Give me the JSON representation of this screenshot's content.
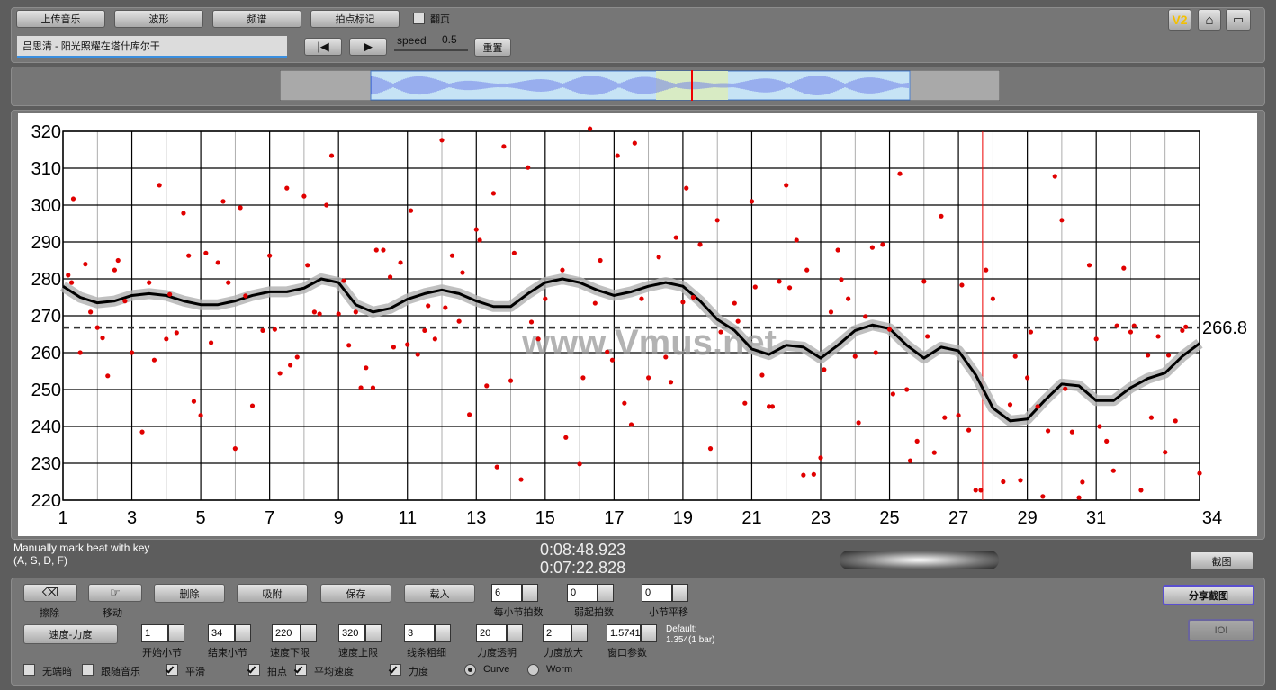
{
  "toolbar": {
    "buttons": [
      "上传音乐",
      "波形",
      "频谱",
      "拍点标记"
    ],
    "page_flip": {
      "label": "翻页",
      "checked": false
    },
    "song": "吕思清 - 阳光照耀在塔什库尔干",
    "speed_label": "speed",
    "speed_value": 0.5,
    "reset": "重置",
    "version": "V2"
  },
  "chart_data": {
    "type": "line",
    "ylim": [
      220,
      320
    ],
    "yticks": [
      220,
      230,
      240,
      250,
      260,
      270,
      280,
      290,
      300,
      310,
      320
    ],
    "xlim": [
      1,
      34
    ],
    "xticks": [
      1,
      3,
      5,
      7,
      9,
      11,
      13,
      15,
      17,
      19,
      21,
      23,
      25,
      27,
      29,
      31,
      34
    ],
    "grid": true,
    "average": 266.8,
    "marker_x": 27.7,
    "watermark": "www.Vmus.net",
    "series": [
      {
        "type": "line",
        "color": "#000000",
        "x": [
          1,
          1.5,
          2,
          2.5,
          3,
          3.5,
          4,
          4.5,
          5,
          5.5,
          6,
          6.5,
          7,
          7.5,
          8,
          8.5,
          9,
          9.5,
          10,
          10.5,
          11,
          11.5,
          12,
          12.5,
          13,
          13.5,
          14,
          14.5,
          15,
          15.5,
          16,
          16.5,
          17,
          17.5,
          18,
          18.5,
          19,
          19.5,
          20,
          20.5,
          21,
          21.5,
          22,
          22.5,
          23,
          23.5,
          24,
          24.5,
          25,
          25.5,
          26,
          26.5,
          27,
          27.5,
          28,
          28.5,
          29,
          29.5,
          30,
          30.5,
          31,
          31.5,
          32,
          32.5,
          33,
          33.5,
          34
        ],
        "values": [
          278,
          275,
          273.5,
          274,
          275.5,
          276,
          275.5,
          274,
          273,
          273,
          274,
          275.5,
          276.5,
          276.5,
          277.5,
          280,
          279,
          273,
          271,
          272,
          274.5,
          276,
          277,
          276,
          274,
          272.5,
          272.5,
          276,
          279,
          280,
          279,
          277,
          275.5,
          276.5,
          278,
          279,
          278,
          274,
          269,
          266,
          261,
          259.5,
          262,
          261.5,
          258.5,
          262,
          266,
          267.5,
          266.5,
          262,
          258.5,
          261.5,
          260.5,
          254,
          245,
          241.5,
          242,
          247,
          251.5,
          251,
          247,
          247,
          250.5,
          253,
          254.5,
          259,
          262.5
        ]
      },
      {
        "type": "scatter",
        "color": "#e00000",
        "x": [
          1.25,
          1.15,
          1.3,
          1.5,
          1.65,
          1.8,
          2.0,
          2.15,
          2.3,
          2.5,
          2.6,
          2.8,
          3.0,
          3.3,
          3.5,
          3.65,
          3.8,
          4.0,
          4.1,
          4.3,
          4.5,
          4.65,
          4.8,
          5.0,
          5.15,
          5.3,
          5.5,
          5.65,
          5.8,
          6.0,
          6.15,
          6.3,
          6.5,
          6.8,
          7.0,
          7.15,
          7.3,
          7.5,
          7.6,
          7.8,
          8.0,
          8.1,
          8.3,
          8.45,
          8.65,
          8.8,
          9.0,
          9.15,
          9.3,
          9.5,
          9.65,
          9.8,
          10.0,
          10.1,
          10.3,
          10.5,
          10.6,
          10.8,
          11.0,
          11.1,
          11.3,
          11.5,
          11.6,
          11.8,
          12.0,
          12.1,
          12.3,
          12.5,
          12.6,
          12.8,
          13.0,
          13.1,
          13.3,
          13.5,
          13.6,
          13.8,
          14.0,
          14.1,
          14.3,
          14.5,
          14.6,
          14.8,
          15.0,
          15.5,
          15.6,
          16.0,
          16.1,
          16.3,
          16.45,
          16.6,
          16.8,
          16.95,
          17.1,
          17.3,
          17.5,
          17.6,
          17.8,
          18.0,
          18.3,
          18.5,
          18.65,
          18.8,
          19.0,
          19.1,
          19.3,
          19.5,
          19.8,
          20.0,
          20.1,
          20.5,
          20.6,
          20.8,
          21.0,
          21.1,
          21.3,
          21.5,
          21.6,
          21.8,
          22.0,
          22.1,
          22.3,
          22.5,
          22.6,
          22.8,
          23.0,
          23.1,
          23.3,
          23.5,
          23.6,
          23.8,
          24.0,
          24.1,
          24.3,
          24.5,
          24.6,
          24.8,
          25.0,
          25.1,
          25.3,
          25.5,
          25.6,
          25.8,
          26.0,
          26.1,
          26.3,
          26.5,
          26.6,
          27.0,
          27.1,
          27.3,
          27.5,
          27.65,
          27.8,
          28.0,
          28.3,
          28.5,
          28.65,
          28.8,
          29.0,
          29.1,
          29.3,
          29.45,
          29.6,
          29.8,
          30.0,
          30.1,
          30.3,
          30.5,
          30.6,
          30.8,
          31.0,
          31.1,
          31.3,
          31.5,
          31.6,
          31.8,
          32.0,
          32.1,
          32.3,
          32.5,
          32.6,
          32.8,
          33.0,
          33.1,
          33.3,
          33.5,
          33.6,
          34.0
        ],
        "values": [
          279,
          281,
          301.7,
          260,
          284,
          271,
          266.8,
          264,
          253.7,
          282.4,
          285,
          274,
          260,
          238.5,
          279,
          258,
          305.4,
          263.7,
          275.8,
          265.4,
          297.8,
          286.3,
          246.8,
          243,
          287,
          262.7,
          284.4,
          301,
          279,
          234,
          299.3,
          275.4,
          245.6,
          266,
          286.3,
          266.3,
          254.4,
          304.6,
          256.6,
          258.8,
          302.4,
          283.7,
          271,
          270.5,
          300,
          313.4,
          270.5,
          279.5,
          262,
          271,
          250.5,
          255.9,
          250.5,
          287.8,
          287.8,
          280.5,
          261.5,
          284.4,
          262.2,
          298.5,
          259.5,
          266,
          272.7,
          263.7,
          317.6,
          272.2,
          286.3,
          268.5,
          281.7,
          243.2,
          293.4,
          290.5,
          251,
          303.2,
          229,
          315.9,
          252.4,
          287,
          225.6,
          310.2,
          268.3,
          263.7,
          274.6,
          282.4,
          237,
          229.8,
          253.2,
          320.7,
          273.4,
          285,
          260.2,
          258,
          313.4,
          246.3,
          240.5,
          316.8,
          274.6,
          253.2,
          285.9,
          258.8,
          252,
          291.2,
          273.7,
          304.6,
          275,
          289.3,
          234,
          295.9,
          265.6,
          273.4,
          268.5,
          246.3,
          301,
          277.8,
          253.9,
          245.4,
          245.4,
          279.3,
          305.4,
          277.6,
          290.5,
          226.8,
          282.4,
          227,
          231.5,
          255.4,
          271,
          287.8,
          279.8,
          274.6,
          259,
          241,
          269.8,
          288.5,
          260,
          289.3,
          266.3,
          248.8,
          308.5,
          250,
          230.7,
          236,
          279.3,
          264.4,
          232.9,
          297,
          242.4,
          243,
          278.3,
          239,
          222.7,
          222.7,
          282.4,
          274.6,
          225,
          245.9,
          259,
          225.4,
          253.2,
          265.6,
          245.4,
          221,
          238.8,
          307.8,
          295.9,
          250.2,
          238.5,
          220.7,
          224.9,
          283.7,
          263.7,
          240,
          236,
          228,
          267.3,
          282.9,
          265.6,
          267.3,
          222.7,
          259.3,
          242.4,
          264.4,
          233,
          259.3,
          241.5,
          266,
          267,
          227.3
        ]
      }
    ]
  },
  "status": {
    "hint": [
      "Manually mark beat with key",
      "(A, S, D, F)"
    ],
    "times": [
      "0:08:48.923",
      "0:07:22.828"
    ],
    "screenshot": "截图"
  },
  "controls": {
    "tools": [
      "擦除",
      "移动"
    ],
    "buttons": [
      "删除",
      "吸附",
      "保存",
      "载入"
    ],
    "spinners_row1": [
      {
        "value": 6,
        "label": "每小节拍数"
      },
      {
        "value": 0,
        "label": "弱起拍数"
      },
      {
        "value": 0,
        "label": "小节平移"
      }
    ],
    "mode_button": "速度-力度",
    "spinners_row2": [
      {
        "value": 1,
        "label": "开始小节"
      },
      {
        "value": 34,
        "label": "结束小节"
      },
      {
        "value": 220,
        "label": "速度下限"
      },
      {
        "value": 320,
        "label": "速度上限"
      },
      {
        "value": 3,
        "label": "线条粗细"
      },
      {
        "value": 20,
        "label": "力度透明"
      },
      {
        "value": 2,
        "label": "力度放大"
      },
      {
        "value": 1.5741,
        "label": "窗口参数"
      }
    ],
    "default_label": "Default:",
    "default_value": "1.354(1 bar)",
    "checkboxes": [
      {
        "label": "无端暗",
        "checked": false
      },
      {
        "label": "跟随音乐",
        "checked": false
      },
      {
        "label": "平滑",
        "checked": true
      },
      {
        "label": "拍点",
        "checked": true
      },
      {
        "label": "平均速度",
        "checked": true
      },
      {
        "label": "力度",
        "checked": true
      }
    ],
    "radios": [
      {
        "label": "Curve",
        "selected": true
      },
      {
        "label": "Worm",
        "selected": false
      }
    ],
    "share": "分享截图",
    "ioi": "IOI"
  }
}
